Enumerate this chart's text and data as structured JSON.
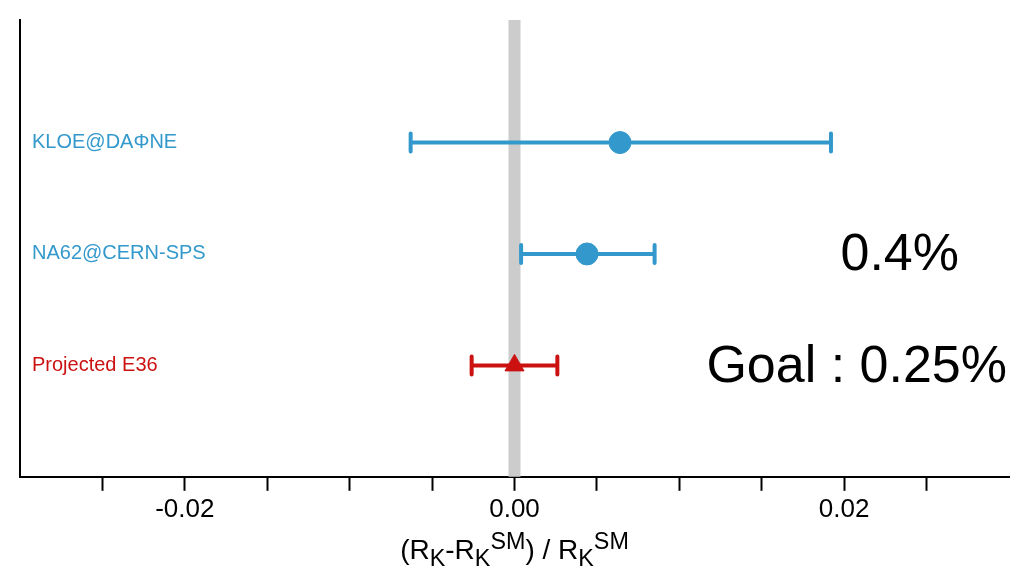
{
  "chart_data": {
    "type": "scatter",
    "orientation": "horizontal",
    "xlabel": "(R$_{K}$-R$_{K}$$^{SM}$) / R$_{K}$$^{SM}$",
    "categories": [
      "KLOE@DAΦNE",
      "NA62@CERN-SPS",
      "Projected E36"
    ],
    "series": [
      {
        "color": "#3399cc",
        "marker": "circle",
        "values": [
          0.0064,
          0.0044,
          null
        ],
        "errors": [
          [
            -0.0063,
            0.0192
          ],
          [
            0.0004,
            0.0085
          ],
          null
        ]
      },
      {
        "color": "#cc1111",
        "marker": "triangle",
        "values": [
          null,
          null,
          0
        ],
        "errors": [
          null,
          null,
          [
            -0.0026,
            0.0026
          ]
        ]
      }
    ],
    "xlim": [
      -0.03,
      0.03
    ],
    "xticks": [
      {
        "value": -0.025,
        "label": null
      },
      {
        "value": -0.02,
        "label": "-0.02"
      },
      {
        "value": -0.015,
        "label": null
      },
      {
        "value": -0.01,
        "label": null
      },
      {
        "value": -0.005,
        "label": null
      },
      {
        "value": 0,
        "label": "0.00"
      },
      {
        "value": 0.005,
        "label": null
      },
      {
        "value": 0.01,
        "label": null
      },
      {
        "value": 0.015,
        "label": null
      },
      {
        "value": 0.02,
        "label": "0.02"
      },
      {
        "value": 0.025,
        "label": null
      }
    ],
    "ref_lines": [
      {
        "axis": "x",
        "value": 0,
        "color": "#cccccc"
      }
    ],
    "annotations": [
      "0.4%",
      "Goal : 0.25%"
    ],
    "grid": false,
    "legend": false
  }
}
